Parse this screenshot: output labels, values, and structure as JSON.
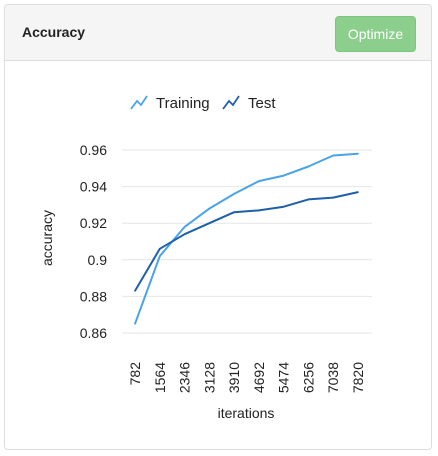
{
  "panel": {
    "title": "Accuracy",
    "optimize_label": "Optimize"
  },
  "legend": {
    "items": [
      {
        "label": "Training",
        "icon": "line-chart-icon",
        "color": "#4aa3e8"
      },
      {
        "label": "Test",
        "icon": "line-chart-icon",
        "color": "#1f5fa8"
      }
    ]
  },
  "chart_data": {
    "type": "line",
    "xlabel": "iterations",
    "ylabel": "accuracy",
    "x": [
      "782",
      "1564",
      "2346",
      "3128",
      "3910",
      "4692",
      "5474",
      "6256",
      "7038",
      "7820"
    ],
    "ylim": [
      0.86,
      0.96
    ],
    "yticks": [
      "0.86",
      "0.88",
      "0.9",
      "0.92",
      "0.94",
      "0.96"
    ],
    "grid": true,
    "legend_position": "top",
    "series": [
      {
        "name": "Training",
        "color": "#4aa3e8",
        "values": [
          0.865,
          0.902,
          0.918,
          0.928,
          0.936,
          0.943,
          0.946,
          0.951,
          0.957,
          0.958
        ]
      },
      {
        "name": "Test",
        "color": "#1f5fa8",
        "values": [
          0.883,
          0.906,
          0.914,
          0.92,
          0.926,
          0.927,
          0.929,
          0.933,
          0.934,
          0.937
        ]
      }
    ]
  }
}
